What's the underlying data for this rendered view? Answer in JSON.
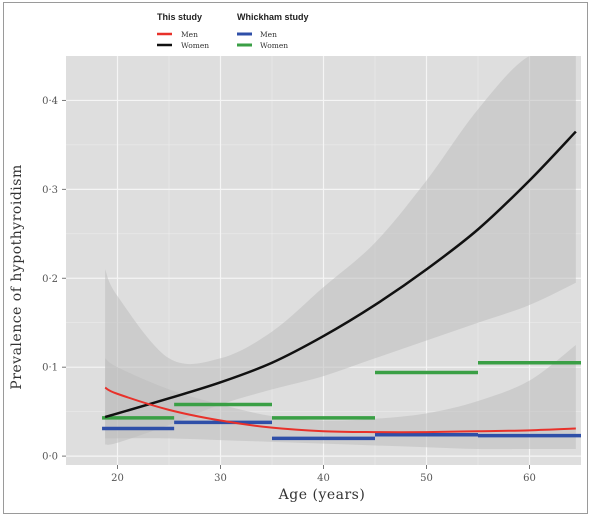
{
  "chart_data": {
    "type": "line",
    "title": "",
    "xlabel": "Age (years)",
    "ylabel": "Prevalence of hypothyroidism",
    "xlim": [
      15,
      65
    ],
    "ylim": [
      -0.01,
      0.45
    ],
    "x_ticks": [
      20,
      30,
      40,
      50,
      60
    ],
    "x_tick_labels": [
      "20",
      "30",
      "40",
      "50",
      "60"
    ],
    "y_ticks": [
      0.0,
      0.1,
      0.2,
      0.3,
      0.4
    ],
    "y_tick_labels": [
      "0·0",
      "0·1",
      "0·2",
      "0·3",
      "0·4"
    ],
    "grid": true,
    "legend_position": "top",
    "legend": {
      "groups": [
        {
          "title": "This study",
          "entries": [
            {
              "label": "Men",
              "color": "#e8312a"
            },
            {
              "label": "Women",
              "color": "#111111"
            }
          ]
        },
        {
          "title": "Whickham study",
          "entries": [
            {
              "label": "Men",
              "color": "#2f4fa8"
            },
            {
              "label": "Women",
              "color": "#3a9f45"
            }
          ]
        }
      ]
    },
    "colors": {
      "panel": "#dedede",
      "grid": "#f5f5f5",
      "band": "#bdbdbd",
      "this_men": "#e8312a",
      "this_women": "#111111",
      "whickham_men": "#2f4fa8",
      "whickham_women": "#3a9f45"
    },
    "series": [
      {
        "name": "Women",
        "group": "This study",
        "kind": "curve",
        "x": [
          18.8,
          20,
          25,
          30,
          35,
          40,
          45,
          50,
          55,
          60,
          64.5
        ],
        "y": [
          0.044,
          0.048,
          0.065,
          0.083,
          0.105,
          0.135,
          0.17,
          0.21,
          0.255,
          0.31,
          0.365
        ],
        "ci_lower": [
          0.013,
          0.015,
          0.035,
          0.058,
          0.075,
          0.09,
          0.11,
          0.13,
          0.15,
          0.17,
          0.195
        ],
        "ci_upper": [
          0.21,
          0.18,
          0.11,
          0.11,
          0.14,
          0.19,
          0.24,
          0.31,
          0.39,
          0.45,
          0.45
        ]
      },
      {
        "name": "Men",
        "group": "This study",
        "kind": "curve",
        "x": [
          18.8,
          20,
          25,
          30,
          35,
          40,
          45,
          50,
          55,
          60,
          64.5
        ],
        "y": [
          0.077,
          0.07,
          0.052,
          0.04,
          0.032,
          0.028,
          0.027,
          0.027,
          0.028,
          0.029,
          0.031
        ],
        "ci_lower": [
          0.02,
          0.02,
          0.02,
          0.018,
          0.016,
          0.014,
          0.012,
          0.01,
          0.008,
          0.008,
          0.008
        ],
        "ci_upper": [
          0.11,
          0.1,
          0.075,
          0.058,
          0.045,
          0.04,
          0.042,
          0.048,
          0.062,
          0.085,
          0.125
        ]
      },
      {
        "name": "Women",
        "group": "Whickham study",
        "kind": "steps",
        "segments": [
          [
            18.5,
            25.5,
            0.043
          ],
          [
            25.5,
            35,
            0.058
          ],
          [
            35,
            45,
            0.043
          ],
          [
            45,
            55,
            0.094
          ],
          [
            55,
            65,
            0.105
          ]
        ]
      },
      {
        "name": "Men",
        "group": "Whickham study",
        "kind": "steps",
        "segments": [
          [
            18.5,
            25.5,
            0.031
          ],
          [
            25.5,
            35,
            0.038
          ],
          [
            35,
            45,
            0.02
          ],
          [
            45,
            55,
            0.024
          ],
          [
            55,
            65,
            0.023
          ]
        ]
      }
    ]
  }
}
